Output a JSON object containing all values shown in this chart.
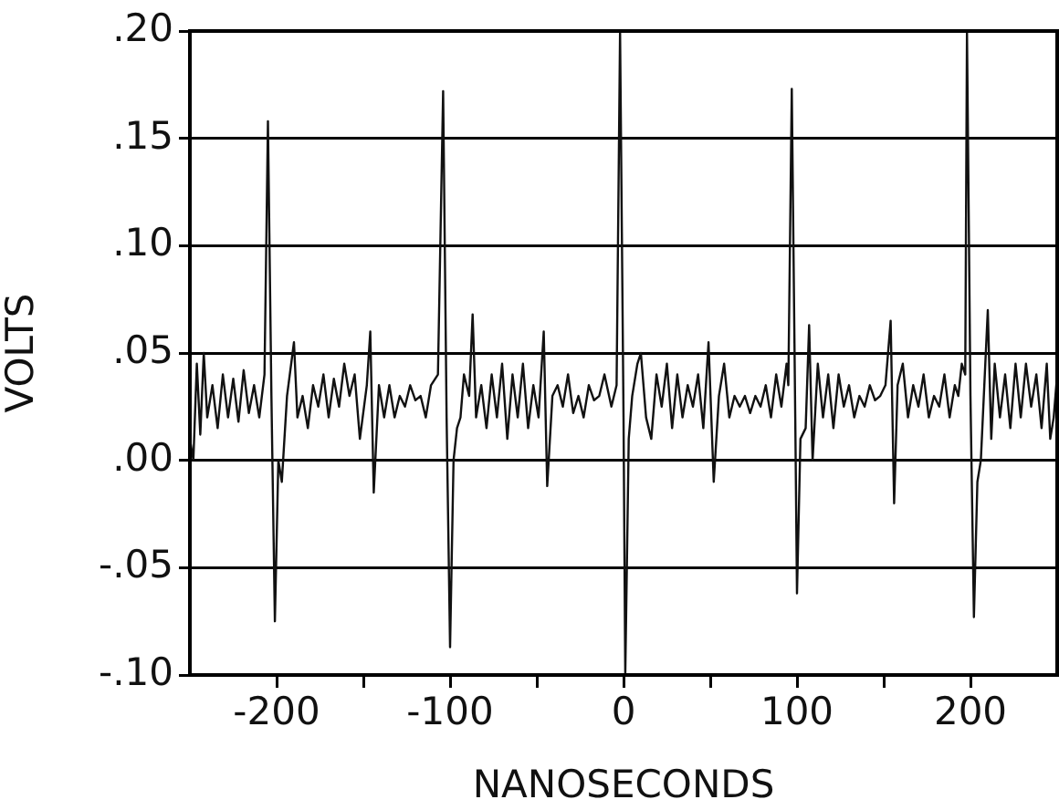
{
  "chart_data": {
    "type": "line",
    "xlabel": "NANOSECONDS",
    "ylabel": "VOLTS",
    "xlim": [
      -250,
      250
    ],
    "ylim": [
      -0.1,
      0.2
    ],
    "xticks": [
      -200,
      {
        "value": -150,
        "label": null
      },
      -100,
      {
        "value": -50,
        "label": null
      },
      0,
      {
        "value": 50,
        "label": null
      },
      100,
      {
        "value": 150,
        "label": null
      },
      200
    ],
    "yticks": [
      {
        "value": -0.1,
        "label": "-.10"
      },
      {
        "value": -0.05,
        "label": "-.05"
      },
      {
        "value": 0,
        "label": ".00"
      },
      {
        "value": 0.05,
        "label": ".05"
      },
      {
        "value": 0.1,
        "label": ".10"
      },
      {
        "value": 0.15,
        "label": ".15"
      },
      {
        "value": 0.2,
        "label": ".20"
      }
    ],
    "grid": "y",
    "x": [
      -250,
      -248,
      -246,
      -244,
      -242,
      -240,
      -237,
      -234,
      -231,
      -228,
      -225,
      -222,
      -219,
      -216,
      -213,
      -210,
      -207,
      -205,
      -203,
      -201,
      -199,
      -197,
      -194,
      -190,
      -188,
      -185,
      -182,
      -179,
      -176,
      -173,
      -170,
      -167,
      -164,
      -161,
      -158,
      -155,
      -152,
      -148,
      -146,
      -144,
      -141,
      -138,
      -135,
      -132,
      -129,
      -126,
      -123,
      -120,
      -117,
      -114,
      -111,
      -107,
      -104,
      -102,
      -100,
      -98,
      -96,
      -94,
      -92,
      -89,
      -87,
      -85,
      -82,
      -79,
      -76,
      -73,
      -70,
      -67,
      -64,
      -61,
      -58,
      -55,
      -52,
      -49,
      -46,
      -44,
      -41,
      -38,
      -35,
      -32,
      -29,
      -26,
      -23,
      -20,
      -17,
      -14,
      -11,
      -7,
      -4,
      -2,
      0,
      1,
      3,
      5,
      8,
      10,
      13,
      16,
      19,
      22,
      25,
      28,
      31,
      34,
      37,
      40,
      43,
      46,
      49,
      52,
      55,
      58,
      61,
      64,
      67,
      70,
      73,
      76,
      79,
      82,
      85,
      88,
      91,
      94,
      95,
      97,
      99,
      100,
      102,
      105,
      107,
      109,
      112,
      115,
      118,
      121,
      124,
      127,
      130,
      133,
      136,
      139,
      142,
      145,
      148,
      151,
      154,
      156,
      158,
      161,
      164,
      167,
      170,
      173,
      176,
      179,
      182,
      185,
      188,
      191,
      193,
      195,
      197,
      198,
      200,
      202,
      204,
      206,
      208,
      210,
      212,
      214,
      217,
      220,
      223,
      226,
      229,
      232,
      235,
      238,
      241,
      244,
      246,
      248,
      250
    ],
    "series": [
      {
        "color": "#111111",
        "values": [
          0.01,
          0.0,
          0.045,
          0.012,
          0.05,
          0.02,
          0.035,
          0.015,
          0.04,
          0.02,
          0.038,
          0.018,
          0.042,
          0.022,
          0.035,
          0.02,
          0.04,
          0.158,
          0.03,
          -0.075,
          0.0,
          -0.01,
          0.03,
          0.055,
          0.02,
          0.03,
          0.015,
          0.035,
          0.025,
          0.04,
          0.02,
          0.038,
          0.025,
          0.045,
          0.03,
          0.04,
          0.01,
          0.035,
          0.06,
          -0.015,
          0.035,
          0.02,
          0.035,
          0.02,
          0.03,
          0.025,
          0.035,
          0.028,
          0.03,
          0.02,
          0.035,
          0.04,
          0.172,
          0.02,
          -0.087,
          0.0,
          0.015,
          0.02,
          0.04,
          0.03,
          0.068,
          0.02,
          0.035,
          0.015,
          0.04,
          0.02,
          0.045,
          0.01,
          0.04,
          0.02,
          0.045,
          0.015,
          0.035,
          0.02,
          0.06,
          -0.012,
          0.03,
          0.035,
          0.025,
          0.04,
          0.022,
          0.03,
          0.02,
          0.035,
          0.028,
          0.03,
          0.04,
          0.025,
          0.035,
          0.2,
          0.02,
          -0.1,
          0.01,
          0.03,
          0.045,
          0.05,
          0.02,
          0.01,
          0.04,
          0.025,
          0.045,
          0.015,
          0.04,
          0.02,
          0.035,
          0.025,
          0.04,
          0.015,
          0.055,
          -0.01,
          0.03,
          0.045,
          0.02,
          0.03,
          0.025,
          0.03,
          0.022,
          0.03,
          0.025,
          0.035,
          0.02,
          0.04,
          0.025,
          0.045,
          0.035,
          0.173,
          0.02,
          -0.062,
          0.01,
          0.015,
          0.063,
          0.0,
          0.045,
          0.02,
          0.04,
          0.015,
          0.04,
          0.025,
          0.035,
          0.02,
          0.03,
          0.025,
          0.035,
          0.028,
          0.03,
          0.035,
          0.065,
          -0.02,
          0.035,
          0.045,
          0.02,
          0.035,
          0.025,
          0.04,
          0.02,
          0.03,
          0.025,
          0.04,
          0.02,
          0.035,
          0.03,
          0.045,
          0.04,
          0.2,
          0.03,
          -0.073,
          -0.01,
          0.0,
          0.035,
          0.07,
          0.01,
          0.045,
          0.02,
          0.04,
          0.015,
          0.045,
          0.02,
          0.045,
          0.025,
          0.04,
          0.015,
          0.045,
          0.01,
          0.02,
          0.04
        ]
      }
    ]
  }
}
